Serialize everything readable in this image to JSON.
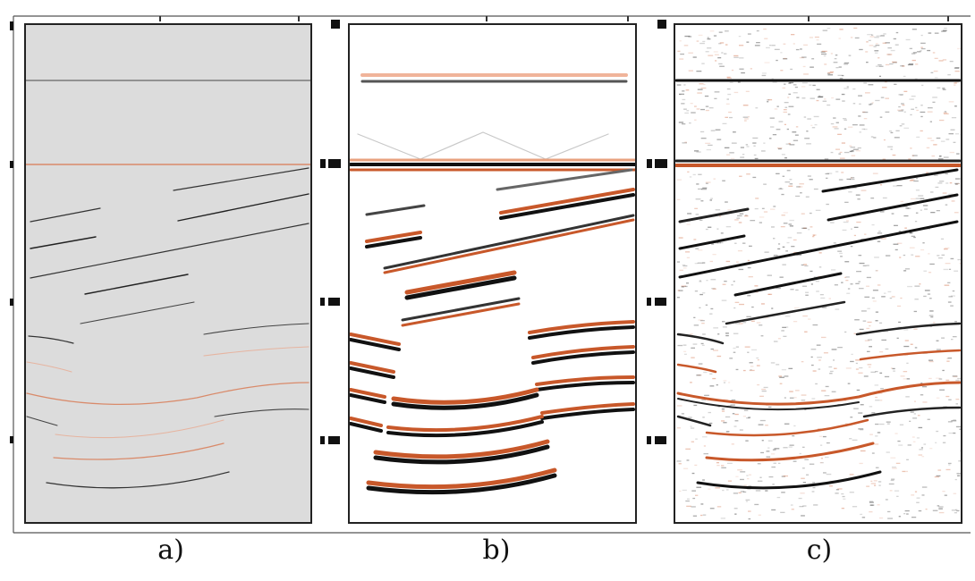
{
  "figure": {
    "panels": [
      {
        "id": "a",
        "caption": "a)",
        "style": "model"
      },
      {
        "id": "b",
        "caption": "b)",
        "style": "clean"
      },
      {
        "id": "c",
        "caption": "c)",
        "style": "noisy"
      }
    ],
    "colors": {
      "frame": "#222222",
      "model_background": "#dcdcdc",
      "reflector_dark": "#111111",
      "reflector_orange": "#c8582a",
      "reflector_light": "#e8a27f",
      "noise_dark": "#3a3a3a",
      "noise_orange": "#d47a55"
    }
  }
}
